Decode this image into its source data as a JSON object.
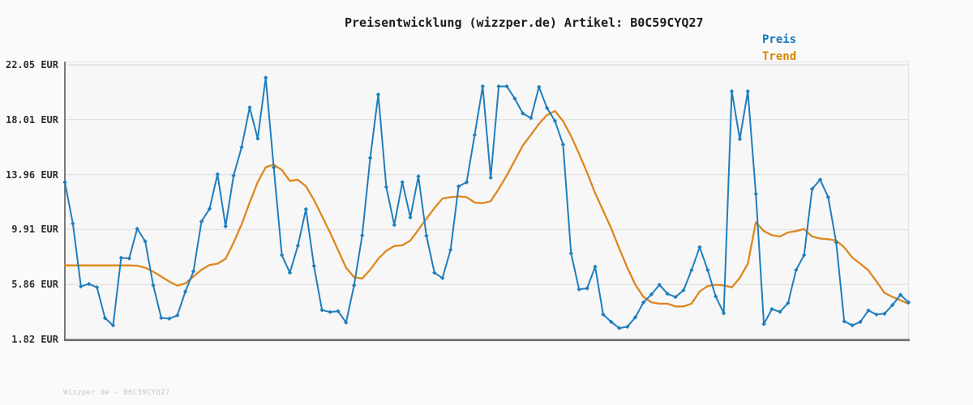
{
  "header": {
    "title": "Preisentwicklung (wizzper.de) Artikel: B0C59CYQ27"
  },
  "legend": [
    {
      "label": "Preis",
      "color": "#1778be"
    },
    {
      "label": "Trend",
      "color": "#d88400"
    }
  ],
  "watermark": "Wizzper.de - B0C59CYQ27",
  "colors": {
    "preis_line": "#1f7ebe",
    "trend_line": "#de861e",
    "grid_line": "#e2e2e2",
    "axis_line": "#6e6e6e",
    "plot_background": "#f7f7f7",
    "page_background": "#fafafa",
    "tick_label": "#2e2e2e",
    "watermark_text": "#c6c6c6"
  },
  "chart_data": {
    "type": "line",
    "title": "Preisentwicklung (wizzper.de) Artikel: B0C59CYQ27",
    "xlabel": "",
    "ylabel": "",
    "ylim": [
      1.82,
      22.05
    ],
    "grid": "horizontal",
    "legend_position": "top-right",
    "x_tick_labels": [],
    "y_ticks": [
      "22.05 EUR",
      "18.01 EUR",
      "13.96 EUR",
      "9.91 EUR",
      "5.86 EUR",
      "1.82 EUR"
    ],
    "y_tick_values": [
      22.05,
      18.01,
      13.96,
      9.91,
      5.86,
      1.82
    ],
    "series": [
      {
        "name": "Preis",
        "color": "#1f7ebe",
        "marker": "diamond",
        "values": [
          13.4,
          10.35,
          5.72,
          5.9,
          5.66,
          3.39,
          2.85,
          7.83,
          7.79,
          9.97,
          9.04,
          5.8,
          3.41,
          3.35,
          3.59,
          5.34,
          6.83,
          10.51,
          11.44,
          13.99,
          10.15,
          13.89,
          15.98,
          18.91,
          16.62,
          21.1,
          14.49,
          8.03,
          6.73,
          8.72,
          11.41,
          7.23,
          3.98,
          3.84,
          3.9,
          3.06,
          5.8,
          9.48,
          15.19,
          19.86,
          13.04,
          10.25,
          13.4,
          10.81,
          13.83,
          9.46,
          6.73,
          6.34,
          8.42,
          13.1,
          13.4,
          16.88,
          20.46,
          13.73,
          20.46,
          20.46,
          19.56,
          18.47,
          18.13,
          20.42,
          18.87,
          17.91,
          16.18,
          8.16,
          5.5,
          5.58,
          7.18,
          3.65,
          3.11,
          2.65,
          2.75,
          3.45,
          4.54,
          5.14,
          5.84,
          5.18,
          4.94,
          5.44,
          6.93,
          8.62,
          6.93,
          4.98,
          3.75,
          20.1,
          16.58,
          20.1,
          12.54,
          2.95,
          4.05,
          3.85,
          4.5,
          6.93,
          8.03,
          12.9,
          13.59,
          12.3,
          8.96,
          3.15,
          2.85,
          3.11,
          3.95,
          3.65,
          3.71,
          4.35,
          5.1,
          4.55
        ]
      },
      {
        "name": "Trend",
        "color": "#de861e",
        "marker": "none",
        "values": [
          7.27,
          7.27,
          7.27,
          7.27,
          7.27,
          7.27,
          7.27,
          7.27,
          7.27,
          7.25,
          7.1,
          6.8,
          6.45,
          6.08,
          5.78,
          5.95,
          6.45,
          6.95,
          7.3,
          7.4,
          7.75,
          8.95,
          10.3,
          11.9,
          13.4,
          14.5,
          14.7,
          14.3,
          13.5,
          13.58,
          13.1,
          12.1,
          10.9,
          9.7,
          8.4,
          7.1,
          6.4,
          6.3,
          6.95,
          7.75,
          8.35,
          8.7,
          8.75,
          9.1,
          9.9,
          10.7,
          11.5,
          12.2,
          12.3,
          12.35,
          12.3,
          11.9,
          11.85,
          12.0,
          12.9,
          13.9,
          15.0,
          16.1,
          16.9,
          17.7,
          18.35,
          18.65,
          17.9,
          16.8,
          15.5,
          14.1,
          12.6,
          11.3,
          10.0,
          8.5,
          7.1,
          5.85,
          4.95,
          4.55,
          4.45,
          4.45,
          4.25,
          4.25,
          4.45,
          5.35,
          5.75,
          5.85,
          5.8,
          5.65,
          6.35,
          7.4,
          10.45,
          9.8,
          9.5,
          9.4,
          9.7,
          9.8,
          9.95,
          9.4,
          9.25,
          9.2,
          9.1,
          8.6,
          7.85,
          7.4,
          6.9,
          6.1,
          5.25,
          4.95,
          4.7,
          4.45
        ]
      }
    ]
  }
}
